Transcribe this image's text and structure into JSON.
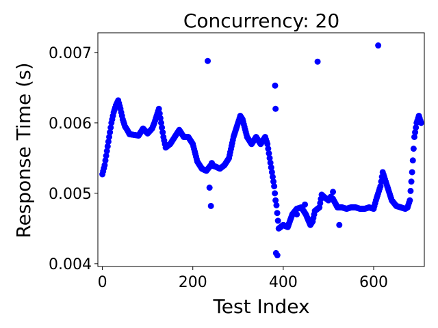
{
  "chart_data": {
    "type": "scatter",
    "title": "Concurrency: 20",
    "xlabel": "Test Index",
    "ylabel": "Response Time (s)",
    "xlim": [
      -10,
      712
    ],
    "ylim": [
      0.00396,
      0.00728
    ],
    "xticks": [
      0,
      200,
      400,
      600
    ],
    "xtick_labels": [
      "0",
      "200",
      "400",
      "600"
    ],
    "yticks": [
      0.004,
      0.005,
      0.006,
      0.007
    ],
    "ytick_labels": [
      "0.004",
      "0.005",
      "0.006",
      "0.007"
    ],
    "grid": false,
    "marker_color": "#0000ff",
    "trace_points": [
      [
        0,
        0.00527
      ],
      [
        5,
        0.0054
      ],
      [
        10,
        0.0056
      ],
      [
        15,
        0.0058
      ],
      [
        20,
        0.006
      ],
      [
        25,
        0.00615
      ],
      [
        30,
        0.00625
      ],
      [
        35,
        0.00632
      ],
      [
        40,
        0.0062
      ],
      [
        45,
        0.00605
      ],
      [
        50,
        0.00595
      ],
      [
        55,
        0.0059
      ],
      [
        60,
        0.00584
      ],
      [
        70,
        0.00583
      ],
      [
        80,
        0.00582
      ],
      [
        90,
        0.00592
      ],
      [
        100,
        0.00585
      ],
      [
        110,
        0.00592
      ],
      [
        115,
        0.006
      ],
      [
        120,
        0.0061
      ],
      [
        125,
        0.0062
      ],
      [
        130,
        0.006
      ],
      [
        135,
        0.0058
      ],
      [
        140,
        0.00565
      ],
      [
        150,
        0.0057
      ],
      [
        160,
        0.0058
      ],
      [
        170,
        0.0059
      ],
      [
        180,
        0.0058
      ],
      [
        190,
        0.0058
      ],
      [
        200,
        0.0057
      ],
      [
        210,
        0.00545
      ],
      [
        220,
        0.00535
      ],
      [
        230,
        0.00532
      ],
      [
        240,
        0.0054
      ],
      [
        250,
        0.00538
      ],
      [
        260,
        0.00535
      ],
      [
        270,
        0.0054
      ],
      [
        280,
        0.0055
      ],
      [
        290,
        0.0058
      ],
      [
        300,
        0.006
      ],
      [
        305,
        0.0061
      ],
      [
        310,
        0.00605
      ],
      [
        320,
        0.0058
      ],
      [
        330,
        0.0057
      ],
      [
        340,
        0.0058
      ],
      [
        350,
        0.0057
      ],
      [
        360,
        0.0058
      ],
      [
        365,
        0.0057
      ],
      [
        370,
        0.0055
      ],
      [
        375,
        0.0053
      ],
      [
        380,
        0.0051
      ],
      [
        383,
        0.0049
      ],
      [
        385,
        0.00483
      ],
      [
        390,
        0.0045
      ],
      [
        400,
        0.00455
      ],
      [
        410,
        0.00452
      ],
      [
        420,
        0.0047
      ],
      [
        430,
        0.00478
      ],
      [
        440,
        0.0048
      ],
      [
        450,
        0.0047
      ],
      [
        460,
        0.00455
      ],
      [
        465,
        0.0046
      ],
      [
        470,
        0.00475
      ],
      [
        480,
        0.0048
      ],
      [
        485,
        0.00498
      ],
      [
        490,
        0.00495
      ],
      [
        500,
        0.0049
      ],
      [
        505,
        0.00495
      ],
      [
        510,
        0.00492
      ],
      [
        520,
        0.0048
      ],
      [
        530,
        0.0048
      ],
      [
        540,
        0.00478
      ],
      [
        550,
        0.0048
      ],
      [
        560,
        0.0048
      ],
      [
        570,
        0.00478
      ],
      [
        580,
        0.00478
      ],
      [
        590,
        0.0048
      ],
      [
        600,
        0.00478
      ],
      [
        605,
        0.0049
      ],
      [
        610,
        0.005
      ],
      [
        615,
        0.0051
      ],
      [
        620,
        0.0053
      ],
      [
        625,
        0.0052
      ],
      [
        630,
        0.0051
      ],
      [
        640,
        0.0049
      ],
      [
        650,
        0.00482
      ],
      [
        660,
        0.0048
      ],
      [
        670,
        0.00478
      ],
      [
        675,
        0.0048
      ],
      [
        680,
        0.0049
      ],
      [
        685,
        0.0053
      ],
      [
        690,
        0.0058
      ],
      [
        695,
        0.006
      ],
      [
        700,
        0.0061
      ],
      [
        705,
        0.006
      ]
    ],
    "outlier_points": [
      [
        233,
        0.00688
      ],
      [
        237,
        0.00508
      ],
      [
        240,
        0.00482
      ],
      [
        242,
        0.00543
      ],
      [
        382,
        0.00653
      ],
      [
        383,
        0.0062
      ],
      [
        384,
        0.00415
      ],
      [
        387,
        0.00412
      ],
      [
        476,
        0.00687
      ],
      [
        510,
        0.00502
      ],
      [
        524,
        0.00455
      ],
      [
        610,
        0.0071
      ],
      [
        430,
        0.0047
      ],
      [
        448,
        0.00484
      ]
    ]
  }
}
